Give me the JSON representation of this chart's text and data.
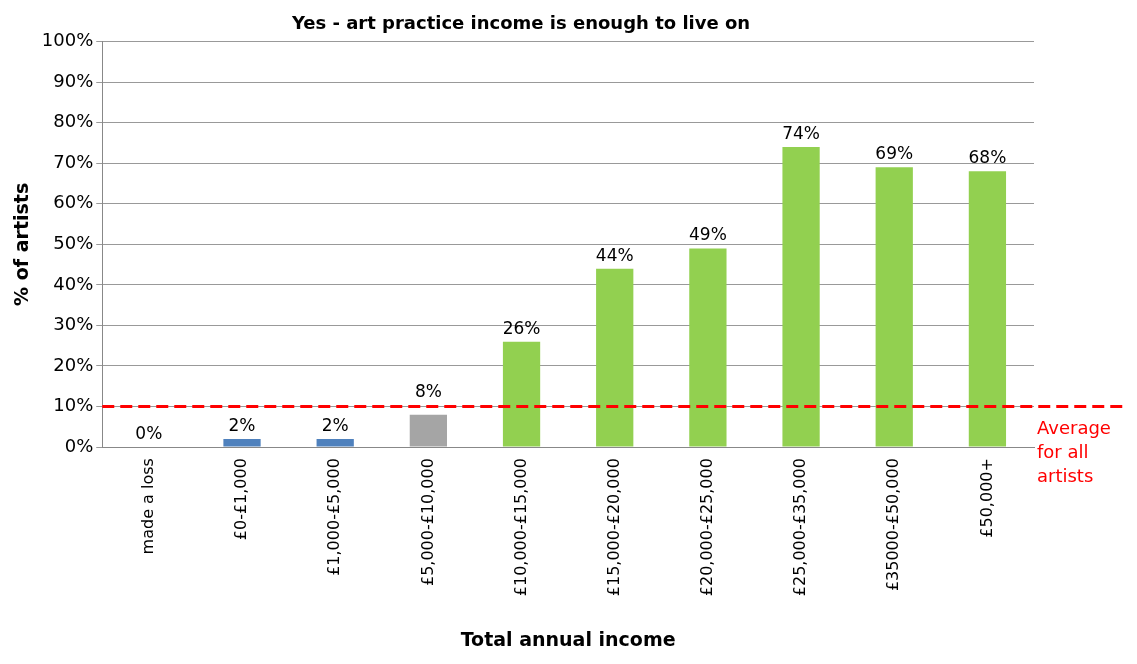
{
  "chart_data": {
    "type": "bar",
    "title": "Yes - art practice income is enough to live on",
    "xlabel": "Total annual income",
    "ylabel": "% of artists",
    "categories": [
      "made a loss",
      "£0-£1,000",
      "£1,000-£5,000",
      "£5,000-£10,000",
      "£10,000-£15,000",
      "£15,000-£20,000",
      "£20,000-£25,000",
      "£25,000-£35,000",
      "£35000-£50,000",
      "£50,000+"
    ],
    "values": [
      0,
      2,
      2,
      8,
      26,
      44,
      49,
      74,
      69,
      68
    ],
    "colors": [
      "#4f81bd",
      "#4f81bd",
      "#4f81bd",
      "#a5a5a5",
      "#92d050",
      "#92d050",
      "#92d050",
      "#92d050",
      "#92d050",
      "#92d050"
    ],
    "value_labels": [
      "0%",
      "2%",
      "2%",
      "8%",
      "26%",
      "44%",
      "49%",
      "74%",
      "69%",
      "68%"
    ],
    "ylim": [
      0,
      100
    ],
    "yticks": [
      {
        "value": 0,
        "label": "0%"
      },
      {
        "value": 10,
        "label": "10%"
      },
      {
        "value": 20,
        "label": "20%"
      },
      {
        "value": 30,
        "label": "30%"
      },
      {
        "value": 40,
        "label": "40%"
      },
      {
        "value": 50,
        "label": "50%"
      },
      {
        "value": 60,
        "label": "60%"
      },
      {
        "value": 70,
        "label": "70%"
      },
      {
        "value": 80,
        "label": "80%"
      },
      {
        "value": 90,
        "label": "90%"
      },
      {
        "value": 100,
        "label": "100%"
      }
    ],
    "grid": "y",
    "legend": false,
    "ref_lines": [
      {
        "axis": "y",
        "value": 10,
        "label": "Average for all artists",
        "color": "#ff0000",
        "line_style": "dashed"
      }
    ]
  }
}
